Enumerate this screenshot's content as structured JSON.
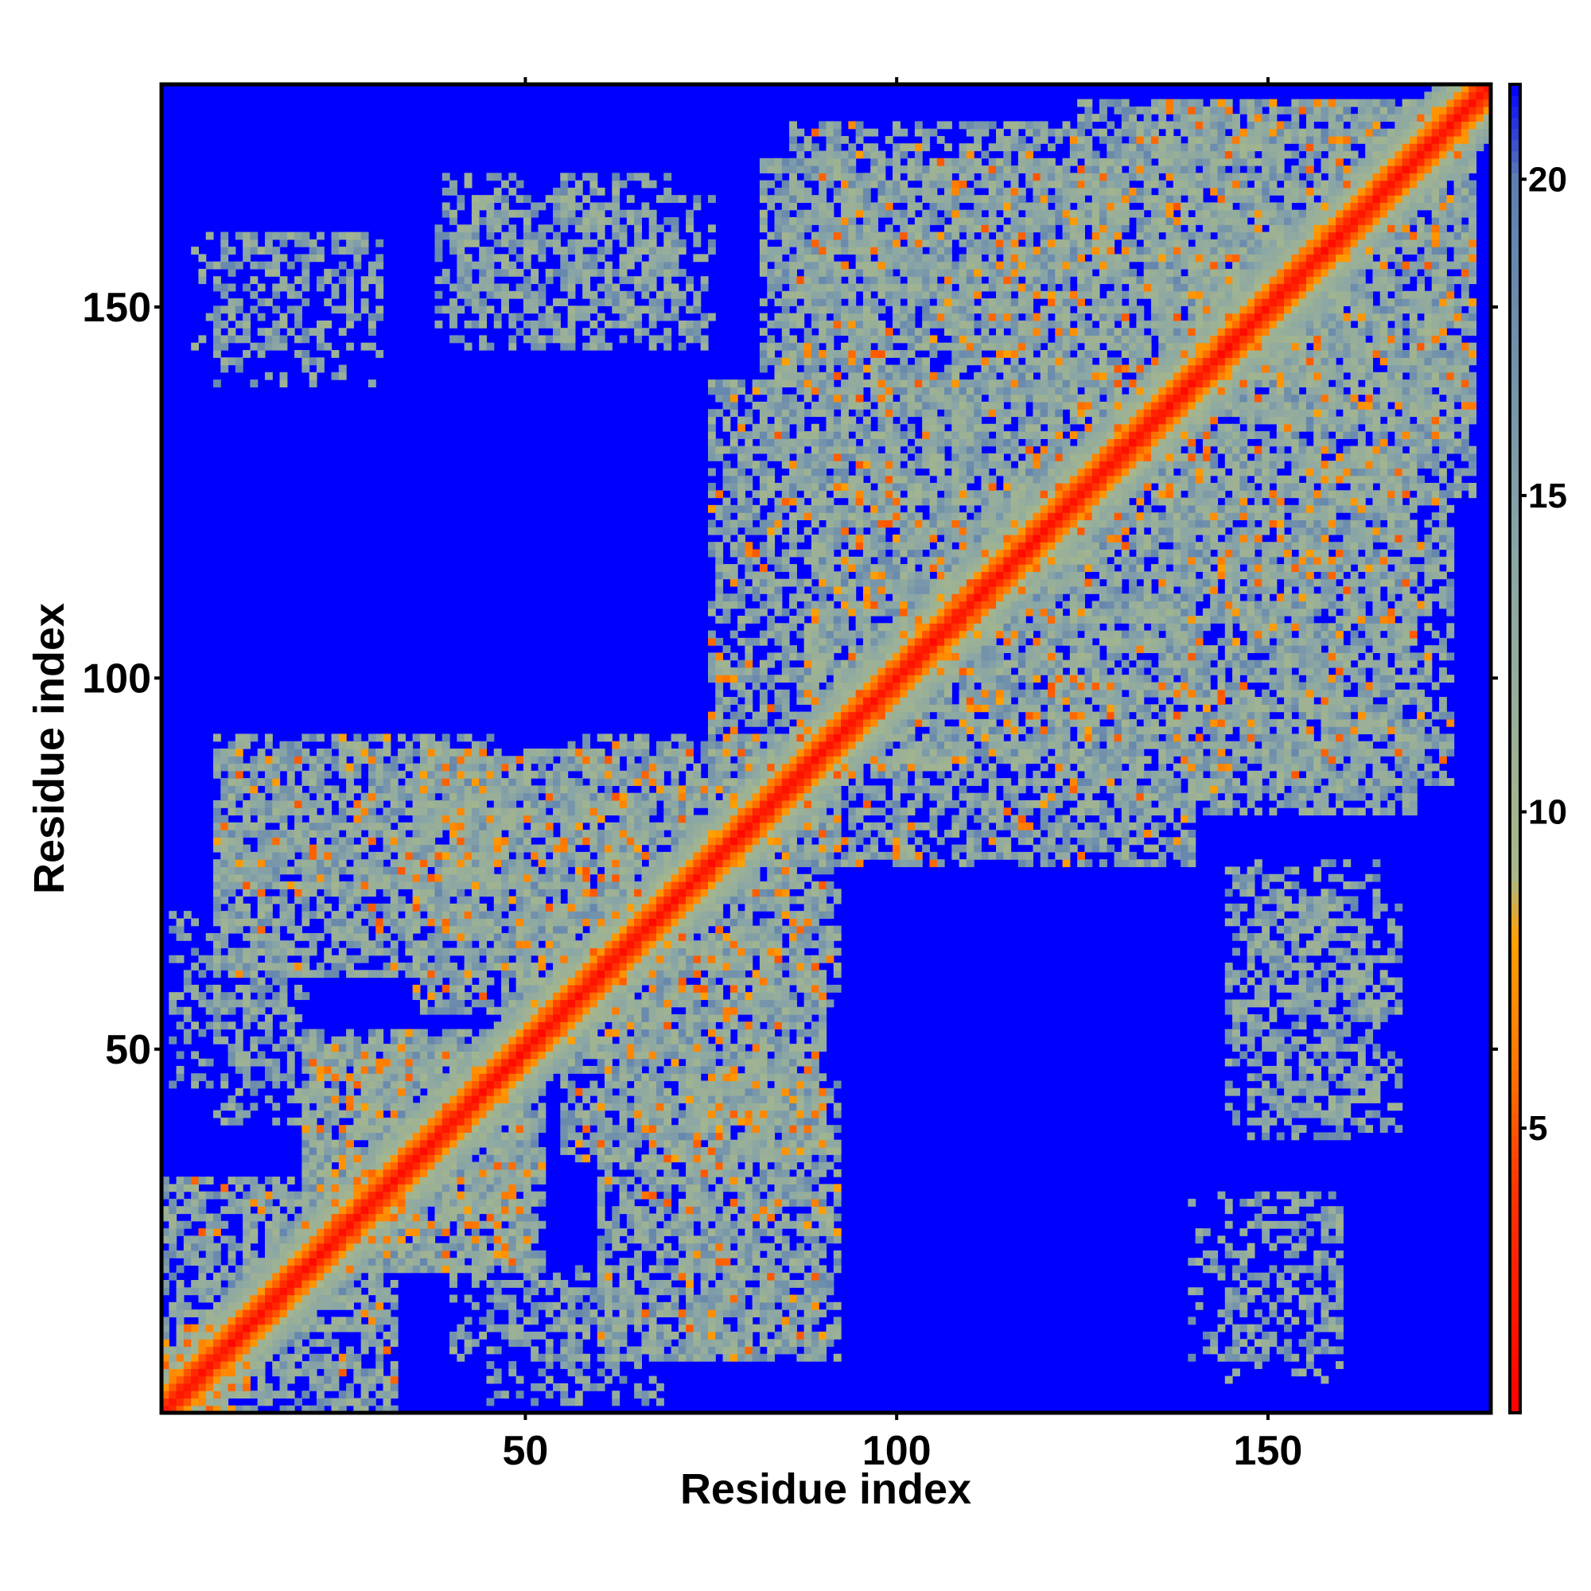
{
  "chart_data": {
    "type": "heatmap",
    "title": "",
    "xlabel": "Residue index",
    "ylabel": "Residue index",
    "n_residues": 180,
    "xlim": [
      1,
      180
    ],
    "ylim": [
      1,
      180
    ],
    "x_ticks": [
      50,
      100,
      150
    ],
    "y_ticks": [
      50,
      100,
      150
    ],
    "x_tick_labels": [
      "50",
      "100",
      "150"
    ],
    "y_tick_labels": [
      "50",
      "100",
      "150"
    ],
    "colorbar": {
      "range": [
        0.5,
        21.5
      ],
      "ticks": [
        5,
        10,
        15,
        20
      ],
      "tick_labels": [
        "5",
        "10",
        "15",
        "20"
      ],
      "stops": [
        {
          "value": 0.5,
          "color": "#ff0000"
        },
        {
          "value": 4.0,
          "color": "#ff3300"
        },
        {
          "value": 6.0,
          "color": "#ff7700"
        },
        {
          "value": 8.0,
          "color": "#ffa000"
        },
        {
          "value": 9.0,
          "color": "#a8b88a"
        },
        {
          "value": 14.0,
          "color": "#8aa6a6"
        },
        {
          "value": 20.0,
          "color": "#5d7fb0"
        },
        {
          "value": 21.5,
          "color": "#0000ff"
        }
      ]
    },
    "background_value": 21.5,
    "description_values": "Symmetric residue-residue distance map; values below ~8 (red/orange) mark close contacts, ~9-20 (grey-green/grey-blue) intermediate distances, >20 (blue) far.",
    "diagonal_band": {
      "contact_width": 3,
      "mid_width": 7
    },
    "contact_blocks": [
      {
        "x": [
          1,
          12
        ],
        "y": [
          1,
          12
        ],
        "density": 0.75,
        "orange_frac": 0.25
      },
      {
        "x": [
          12,
          32
        ],
        "y": [
          1,
          30
        ],
        "density": 0.6,
        "orange_frac": 0.04
      },
      {
        "x": [
          20,
          50
        ],
        "y": [
          20,
          52
        ],
        "density": 0.7,
        "orange_frac": 0.07
      },
      {
        "x": [
          8,
          45
        ],
        "y": [
          72,
          92
        ],
        "density": 0.6,
        "orange_frac": 0.05
      },
      {
        "x": [
          2,
          18
        ],
        "y": [
          45,
          68
        ],
        "density": 0.35,
        "orange_frac": 0.0
      },
      {
        "x": [
          35,
          65
        ],
        "y": [
          55,
          90
        ],
        "density": 0.6,
        "orange_frac": 0.06
      },
      {
        "x": [
          50,
          92
        ],
        "y": [
          55,
          90
        ],
        "density": 0.55,
        "orange_frac": 0.06
      },
      {
        "x": [
          60,
          90
        ],
        "y": [
          8,
          50
        ],
        "density": 0.6,
        "orange_frac": 0.05
      },
      {
        "x": [
          40,
          72
        ],
        "y": [
          8,
          20
        ],
        "density": 0.3,
        "orange_frac": 0.0
      },
      {
        "x": [
          5,
          30
        ],
        "y": [
          145,
          160
        ],
        "density": 0.3,
        "orange_frac": 0.0
      },
      {
        "x": [
          38,
          70
        ],
        "y": [
          148,
          168
        ],
        "density": 0.4,
        "orange_frac": 0.0
      },
      {
        "x": [
          75,
          125
        ],
        "y": [
          88,
          140
        ],
        "density": 0.6,
        "orange_frac": 0.06
      },
      {
        "x": [
          86,
          150
        ],
        "y": [
          140,
          175
        ],
        "density": 0.55,
        "orange_frac": 0.04
      },
      {
        "x": [
          125,
          170
        ],
        "y": [
          82,
          130
        ],
        "density": 0.6,
        "orange_frac": 0.05
      },
      {
        "x": [
          135,
          178
        ],
        "y": [
          125,
          178
        ],
        "density": 0.55,
        "orange_frac": 0.05
      },
      {
        "x": [
          145,
          165
        ],
        "y": [
          40,
          75
        ],
        "density": 0.4,
        "orange_frac": 0.0
      },
      {
        "x": [
          140,
          160
        ],
        "y": [
          8,
          30
        ],
        "density": 0.25,
        "orange_frac": 0.0
      }
    ]
  }
}
